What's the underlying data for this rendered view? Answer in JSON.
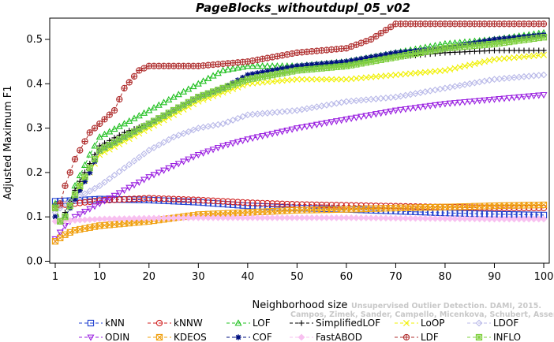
{
  "chart_data": {
    "type": "line",
    "title": "PageBlocks_withoutdupl_05_v02",
    "xlabel": "Neighborhood size",
    "ylabel": "Adjusted Maximum F1",
    "xlim": [
      1,
      100
    ],
    "ylim": [
      0,
      0.55
    ],
    "xticks": [
      1,
      10,
      20,
      30,
      40,
      50,
      60,
      70,
      80,
      90,
      100
    ],
    "yticks": [
      "0.0",
      "0.1",
      "0.2",
      "0.3",
      "0.4",
      "0.5"
    ],
    "grid": false,
    "legend_position": "bottom",
    "watermark": [
      "Unsupervised Outlier Detection. DAMI, 2015.",
      "Campos, Zimek, Sander, Campello, Micenkova, Schubert, Assent, Houle"
    ],
    "series": [
      {
        "name": "kNN",
        "color": "#2040d0",
        "marker": "square",
        "points": [
          [
            1,
            0.135
          ],
          [
            5,
            0.137
          ],
          [
            10,
            0.14
          ],
          [
            20,
            0.138
          ],
          [
            30,
            0.133
          ],
          [
            40,
            0.125
          ],
          [
            50,
            0.12
          ],
          [
            60,
            0.117
          ],
          [
            70,
            0.113
          ],
          [
            80,
            0.109
          ],
          [
            90,
            0.106
          ],
          [
            100,
            0.104
          ]
        ]
      },
      {
        "name": "kNNW",
        "color": "#d02020",
        "marker": "circle",
        "points": [
          [
            1,
            0.125
          ],
          [
            5,
            0.13
          ],
          [
            10,
            0.137
          ],
          [
            20,
            0.142
          ],
          [
            30,
            0.138
          ],
          [
            40,
            0.132
          ],
          [
            50,
            0.128
          ],
          [
            60,
            0.126
          ],
          [
            70,
            0.124
          ],
          [
            80,
            0.122
          ],
          [
            90,
            0.12
          ],
          [
            100,
            0.12
          ]
        ]
      },
      {
        "name": "LOF",
        "color": "#20c020",
        "marker": "triangle-up",
        "points": [
          [
            1,
            0.13
          ],
          [
            2,
            0.09
          ],
          [
            3,
            0.1
          ],
          [
            5,
            0.17
          ],
          [
            8,
            0.24
          ],
          [
            10,
            0.28
          ],
          [
            15,
            0.31
          ],
          [
            20,
            0.34
          ],
          [
            25,
            0.37
          ],
          [
            30,
            0.4
          ],
          [
            35,
            0.43
          ],
          [
            40,
            0.44
          ],
          [
            50,
            0.44
          ],
          [
            60,
            0.45
          ],
          [
            70,
            0.47
          ],
          [
            80,
            0.49
          ],
          [
            90,
            0.5
          ],
          [
            100,
            0.515
          ]
        ]
      },
      {
        "name": "SimplifiedLOF",
        "color": "#000000",
        "marker": "plus",
        "points": [
          [
            1,
            0.12
          ],
          [
            2,
            0.09
          ],
          [
            3,
            0.11
          ],
          [
            5,
            0.16
          ],
          [
            8,
            0.22
          ],
          [
            10,
            0.26
          ],
          [
            15,
            0.29
          ],
          [
            20,
            0.31
          ],
          [
            25,
            0.34
          ],
          [
            30,
            0.37
          ],
          [
            35,
            0.39
          ],
          [
            40,
            0.41
          ],
          [
            50,
            0.43
          ],
          [
            60,
            0.44
          ],
          [
            70,
            0.46
          ],
          [
            80,
            0.47
          ],
          [
            90,
            0.475
          ],
          [
            100,
            0.475
          ]
        ]
      },
      {
        "name": "LoOP",
        "color": "#f0f000",
        "marker": "x",
        "points": [
          [
            1,
            0.12
          ],
          [
            2,
            0.09
          ],
          [
            3,
            0.1
          ],
          [
            5,
            0.15
          ],
          [
            8,
            0.2
          ],
          [
            10,
            0.24
          ],
          [
            15,
            0.27
          ],
          [
            20,
            0.3
          ],
          [
            25,
            0.33
          ],
          [
            30,
            0.36
          ],
          [
            35,
            0.38
          ],
          [
            40,
            0.4
          ],
          [
            50,
            0.41
          ],
          [
            60,
            0.41
          ],
          [
            70,
            0.42
          ],
          [
            80,
            0.43
          ],
          [
            90,
            0.455
          ],
          [
            100,
            0.465
          ]
        ]
      },
      {
        "name": "LDOF",
        "color": "#b8b8e8",
        "marker": "diamond",
        "points": [
          [
            1,
            0.11
          ],
          [
            3,
            0.13
          ],
          [
            5,
            0.14
          ],
          [
            10,
            0.17
          ],
          [
            15,
            0.21
          ],
          [
            20,
            0.25
          ],
          [
            25,
            0.28
          ],
          [
            30,
            0.3
          ],
          [
            35,
            0.31
          ],
          [
            40,
            0.33
          ],
          [
            50,
            0.34
          ],
          [
            60,
            0.36
          ],
          [
            70,
            0.37
          ],
          [
            80,
            0.39
          ],
          [
            90,
            0.41
          ],
          [
            100,
            0.42
          ]
        ]
      },
      {
        "name": "ODIN",
        "color": "#9a20e0",
        "marker": "triangle-down",
        "points": [
          [
            1,
            0.05
          ],
          [
            3,
            0.08
          ],
          [
            5,
            0.1
          ],
          [
            10,
            0.13
          ],
          [
            15,
            0.16
          ],
          [
            20,
            0.19
          ],
          [
            25,
            0.215
          ],
          [
            30,
            0.24
          ],
          [
            35,
            0.26
          ],
          [
            40,
            0.275
          ],
          [
            50,
            0.3
          ],
          [
            60,
            0.32
          ],
          [
            70,
            0.34
          ],
          [
            80,
            0.355
          ],
          [
            90,
            0.365
          ],
          [
            100,
            0.375
          ]
        ]
      },
      {
        "name": "KDEOS",
        "color": "#f0a010",
        "marker": "square-x",
        "points": [
          [
            1,
            0.045
          ],
          [
            3,
            0.06
          ],
          [
            5,
            0.07
          ],
          [
            10,
            0.08
          ],
          [
            20,
            0.09
          ],
          [
            30,
            0.105
          ],
          [
            40,
            0.11
          ],
          [
            50,
            0.115
          ],
          [
            60,
            0.117
          ],
          [
            70,
            0.12
          ],
          [
            80,
            0.122
          ],
          [
            90,
            0.125
          ],
          [
            100,
            0.127
          ]
        ]
      },
      {
        "name": "COF",
        "color": "#001080",
        "marker": "asterisk",
        "points": [
          [
            1,
            0.1
          ],
          [
            2,
            0.09
          ],
          [
            3,
            0.1
          ],
          [
            5,
            0.14
          ],
          [
            8,
            0.2
          ],
          [
            10,
            0.25
          ],
          [
            15,
            0.28
          ],
          [
            20,
            0.31
          ],
          [
            25,
            0.34
          ],
          [
            30,
            0.37
          ],
          [
            35,
            0.39
          ],
          [
            40,
            0.42
          ],
          [
            50,
            0.44
          ],
          [
            60,
            0.45
          ],
          [
            70,
            0.47
          ],
          [
            80,
            0.48
          ],
          [
            90,
            0.5
          ],
          [
            100,
            0.51
          ]
        ]
      },
      {
        "name": "FastABOD",
        "color": "#f8c0f0",
        "marker": "diamond-filled",
        "points": [
          [
            1,
            0.09
          ],
          [
            10,
            0.095
          ],
          [
            20,
            0.097
          ],
          [
            30,
            0.098
          ],
          [
            40,
            0.098
          ],
          [
            50,
            0.098
          ],
          [
            60,
            0.098
          ],
          [
            70,
            0.097
          ],
          [
            80,
            0.096
          ],
          [
            90,
            0.095
          ],
          [
            100,
            0.095
          ]
        ]
      },
      {
        "name": "LDF",
        "color": "#b03030",
        "marker": "circle-plus",
        "points": [
          [
            1,
            0.12
          ],
          [
            2,
            0.13
          ],
          [
            3,
            0.17
          ],
          [
            5,
            0.23
          ],
          [
            8,
            0.29
          ],
          [
            10,
            0.31
          ],
          [
            13,
            0.34
          ],
          [
            15,
            0.39
          ],
          [
            18,
            0.43
          ],
          [
            20,
            0.44
          ],
          [
            30,
            0.44
          ],
          [
            40,
            0.45
          ],
          [
            50,
            0.47
          ],
          [
            60,
            0.48
          ],
          [
            65,
            0.5
          ],
          [
            70,
            0.535
          ],
          [
            80,
            0.535
          ],
          [
            90,
            0.535
          ],
          [
            100,
            0.535
          ]
        ]
      },
      {
        "name": "INFLO",
        "color": "#80d040",
        "marker": "square-cross",
        "points": [
          [
            1,
            0.12
          ],
          [
            2,
            0.09
          ],
          [
            3,
            0.1
          ],
          [
            5,
            0.15
          ],
          [
            8,
            0.21
          ],
          [
            10,
            0.25
          ],
          [
            15,
            0.28
          ],
          [
            20,
            0.31
          ],
          [
            25,
            0.34
          ],
          [
            30,
            0.37
          ],
          [
            35,
            0.39
          ],
          [
            40,
            0.41
          ],
          [
            50,
            0.43
          ],
          [
            60,
            0.44
          ],
          [
            70,
            0.46
          ],
          [
            80,
            0.48
          ],
          [
            90,
            0.49
          ],
          [
            100,
            0.505
          ]
        ]
      }
    ]
  }
}
